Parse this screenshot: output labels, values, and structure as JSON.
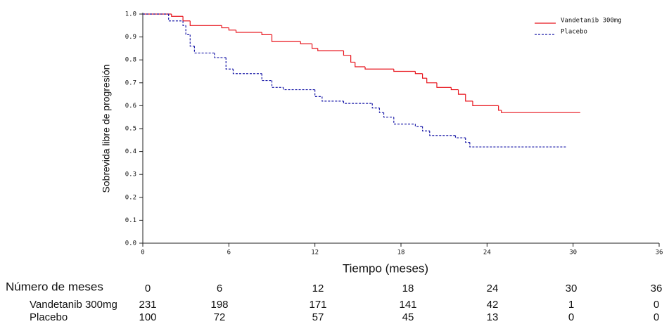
{
  "chart_data": {
    "type": "step",
    "y_label": "Sobrevida libre de progresión",
    "x_label": "Tiempo (meses)",
    "xlim": [
      0,
      36
    ],
    "ylim": [
      0,
      1
    ],
    "xticks": [
      0,
      6,
      12,
      18,
      24,
      30,
      36
    ],
    "yticks": [
      {
        "value": 0,
        "label": "0.0"
      },
      {
        "value": 0.1,
        "label": "0.1"
      },
      {
        "value": 0.2,
        "label": "0.2"
      },
      {
        "value": 0.3,
        "label": "0.3"
      },
      {
        "value": 0.4,
        "label": "0.4"
      },
      {
        "value": 0.5,
        "label": "0.5"
      },
      {
        "value": 0.6,
        "label": "0.6"
      },
      {
        "value": 0.7,
        "label": "0.7"
      },
      {
        "value": 0.8,
        "label": "0.8"
      },
      {
        "value": 0.9,
        "label": "0.9"
      },
      {
        "value": 1,
        "label": "1.0"
      }
    ],
    "legend": "top-right",
    "series": [
      {
        "name": "Vandetanib 300mg",
        "color": "#e8141c",
        "dash": false,
        "x": [
          0,
          2.0,
          2.8,
          3.3,
          5.5,
          6.0,
          6.5,
          8.3,
          9.0,
          11.0,
          11.8,
          12.2,
          14.0,
          14.5,
          14.8,
          15.5,
          17.5,
          19.0,
          19.5,
          19.8,
          20.5,
          21.5,
          22.0,
          22.5,
          23.0,
          24.8,
          25.0,
          30.5
        ],
        "values": [
          1.0,
          0.99,
          0.97,
          0.95,
          0.94,
          0.93,
          0.92,
          0.91,
          0.88,
          0.87,
          0.85,
          0.84,
          0.82,
          0.79,
          0.77,
          0.76,
          0.75,
          0.74,
          0.72,
          0.7,
          0.68,
          0.67,
          0.65,
          0.62,
          0.6,
          0.58,
          0.57,
          0.57
        ]
      },
      {
        "name": "Placebo",
        "color": "#1a1aa8",
        "dash": true,
        "x": [
          0,
          1.8,
          2.8,
          3.0,
          3.3,
          3.6,
          5.0,
          5.8,
          6.3,
          8.3,
          9.0,
          9.8,
          12.0,
          12.5,
          14.0,
          16.0,
          16.5,
          16.8,
          17.5,
          19.0,
          19.5,
          20.0,
          21.8,
          22.5,
          22.8,
          29.5
        ],
        "values": [
          1.0,
          0.97,
          0.95,
          0.91,
          0.86,
          0.83,
          0.81,
          0.76,
          0.74,
          0.71,
          0.68,
          0.67,
          0.64,
          0.62,
          0.61,
          0.59,
          0.57,
          0.55,
          0.52,
          0.51,
          0.49,
          0.47,
          0.46,
          0.44,
          0.42,
          0.42
        ]
      }
    ],
    "risk_table": {
      "title": "Número de meses",
      "times": [
        0,
        6,
        12,
        18,
        24,
        30,
        36
      ],
      "rows": [
        {
          "name": "Vandetanib 300mg",
          "values": [
            231,
            198,
            171,
            141,
            42,
            1,
            0
          ]
        },
        {
          "name": "Placebo",
          "values": [
            100,
            72,
            57,
            45,
            13,
            0,
            0
          ]
        }
      ]
    }
  }
}
